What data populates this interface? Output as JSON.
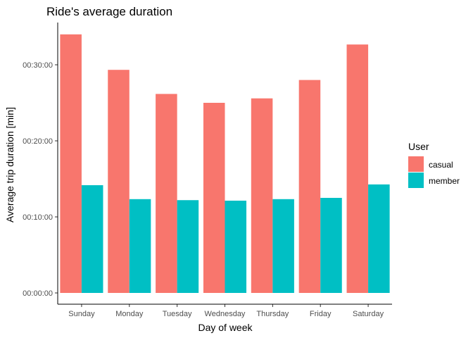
{
  "chart_data": {
    "type": "bar",
    "title": "Ride's average duration",
    "xlabel": "Day of week",
    "ylabel": "Average trip duration [min]",
    "categories": [
      "Sunday",
      "Monday",
      "Tuesday",
      "Wednesday",
      "Thursday",
      "Friday",
      "Saturday"
    ],
    "series": [
      {
        "name": "casual",
        "color": "#F8766D",
        "values": [
          2040,
          1760,
          1570,
          1500,
          1535,
          1680,
          1960
        ]
      },
      {
        "name": "member",
        "color": "#00BFC4",
        "values": [
          850,
          740,
          732,
          728,
          740,
          750,
          856
        ]
      }
    ],
    "value_unit": "seconds",
    "yticks": [
      0,
      600,
      1200,
      1800
    ],
    "ytick_labels": [
      "00:00:00",
      "00:10:00",
      "00:20:00",
      "00:30:00"
    ],
    "ylim": [
      0,
      2130
    ],
    "legend": {
      "title": "User",
      "position": "right"
    },
    "grid": false
  }
}
